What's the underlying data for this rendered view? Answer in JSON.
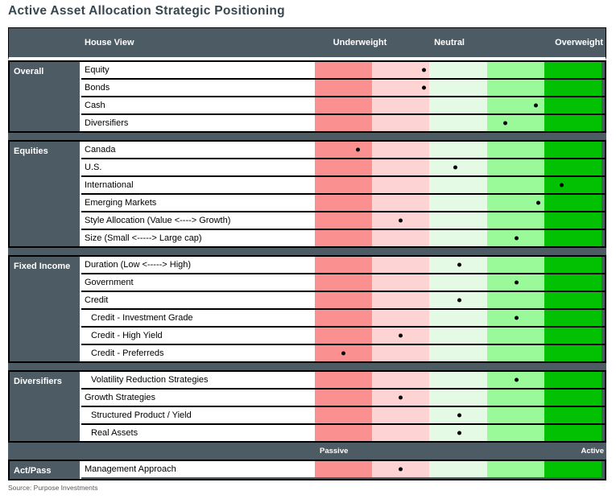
{
  "title": "Active Asset Allocation Strategic Positioning",
  "source": "Source: Purpose Investments",
  "header": {
    "house_view": "House View"
  },
  "colors": {
    "strong_underweight": "#FB9090",
    "underweight": "#FDD3D3",
    "neutral": "#E5FAE5",
    "overweight": "#9AFA9A",
    "strong_overweight": "#02C002",
    "frame": "#4D5B64",
    "title": "#37464F",
    "dot": "#000000"
  },
  "chart_data": {
    "type": "scatter",
    "title": "Active Asset Allocation Strategic Positioning",
    "axis": {
      "min": 0,
      "max": 100,
      "underweight_label": "Underweight",
      "neutral_label": "Neutral",
      "overweight_label": "Overweight",
      "passive_label": "Passive",
      "active_label": "Active",
      "bands": [
        "strong underweight",
        "underweight",
        "neutral",
        "overweight",
        "strong overweight"
      ]
    },
    "sections": [
      {
        "category": "Overall",
        "rows": [
          {
            "label": "Equity",
            "position": 38
          },
          {
            "label": "Bonds",
            "position": 38
          },
          {
            "label": "Cash",
            "position": 77
          },
          {
            "label": "Diversifiers",
            "position": 66.5
          }
        ]
      },
      {
        "category": "Equities",
        "rows": [
          {
            "label": "Canada",
            "position": 15
          },
          {
            "label": "U.S.",
            "position": 49
          },
          {
            "label": "International",
            "position": 86
          },
          {
            "label": "Emerging Markets",
            "position": 78
          },
          {
            "label": "Style Allocation (Value <----> Growth)",
            "position": 30
          },
          {
            "label": "Size (Small <----->  Large cap)",
            "position": 70.5
          }
        ]
      },
      {
        "category": "Fixed Income",
        "rows": [
          {
            "label": "Duration (Low <-----> High)",
            "position": 50.5
          },
          {
            "label": "Government",
            "position": 70.5
          },
          {
            "label": "Credit",
            "position": 50.5
          },
          {
            "label": "Credit - Investment Grade",
            "position": 70.5,
            "indent": true
          },
          {
            "label": "Credit - High Yield",
            "position": 30,
            "indent": true
          },
          {
            "label": "Credit - Preferreds",
            "position": 10,
            "indent": true
          }
        ]
      },
      {
        "category": "Diversifiers",
        "rows": [
          {
            "label": "Volatility Reduction Strategies",
            "position": 70.5,
            "indent": true
          },
          {
            "label": "Growth Strategies",
            "position": 30
          },
          {
            "label": "Structured Product / Yield",
            "position": 50.5,
            "indent": true
          },
          {
            "label": "Real Assets",
            "position": 50.5,
            "indent": true
          }
        ]
      },
      {
        "category": "Act/Pass",
        "rows": [
          {
            "label": "Management Approach",
            "position": 30
          }
        ]
      }
    ]
  }
}
